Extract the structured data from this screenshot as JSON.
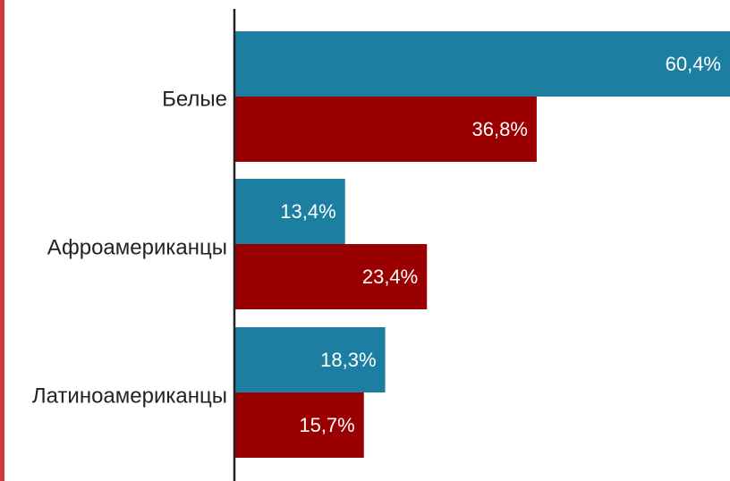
{
  "chart_data": {
    "type": "bar",
    "orientation": "horizontal",
    "categories": [
      "Белые",
      "Афроамериканцы",
      "Латиноамериканцы"
    ],
    "series": [
      {
        "values": [
          60.4,
          13.4,
          18.3
        ],
        "labels": [
          "60,4%",
          "13,4%",
          "18,3%"
        ],
        "color": "#1c7fa2"
      },
      {
        "values": [
          36.8,
          23.4,
          15.7
        ],
        "labels": [
          "36,8%",
          "23,4%",
          "15,7%"
        ],
        "color": "#9b0000"
      }
    ],
    "xlim": [
      0,
      60.4
    ],
    "grid": false,
    "legend": "none"
  },
  "colors": {
    "stripe": "#cc3a3f",
    "axis": "#222222"
  }
}
